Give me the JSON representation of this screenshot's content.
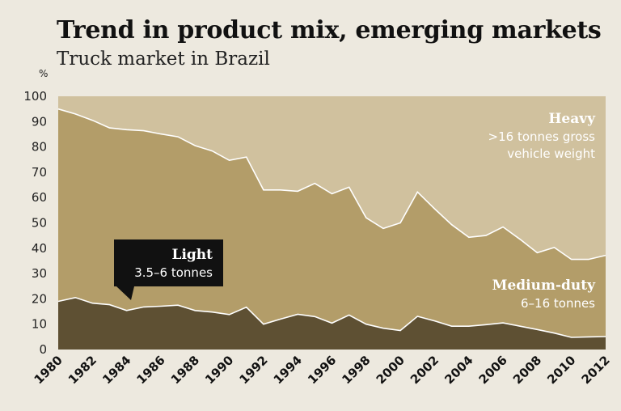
{
  "chart_data": {
    "type": "area",
    "stacked": true,
    "title": "Trend in product mix, emerging markets",
    "subtitle": "Truck market in Brazil",
    "ylabel": "%",
    "xlabel": "",
    "ylim": [
      0,
      100
    ],
    "yticks": [
      0,
      10,
      20,
      30,
      40,
      50,
      60,
      70,
      80,
      90,
      100
    ],
    "xlim": [
      1980,
      2012
    ],
    "xticks": [
      1980,
      1982,
      1984,
      1986,
      1988,
      1990,
      1992,
      1994,
      1996,
      1998,
      2000,
      2002,
      2004,
      2006,
      2008,
      2010,
      2012
    ],
    "x": [
      1980,
      1981,
      1982,
      1983,
      1984,
      1985,
      1986,
      1987,
      1988,
      1989,
      1990,
      1991,
      1992,
      1993,
      1994,
      1995,
      1996,
      1997,
      1998,
      1999,
      2000,
      2001,
      2002,
      2003,
      2004,
      2005,
      2006,
      2007,
      2008,
      2009,
      2010,
      2011,
      2012
    ],
    "series": [
      {
        "name": "Light",
        "color": "#5e5033",
        "values": [
          19,
          20.5,
          18.3,
          17.7,
          15.4,
          16.8,
          17.1,
          17.5,
          15.4,
          14.8,
          13.8,
          16.7,
          10,
          12,
          13.9,
          13,
          10.4,
          13.6,
          10,
          8.4,
          7.5,
          13.1,
          11.3,
          9.2,
          9.2,
          9.8,
          10.5,
          9.2,
          7.9,
          6.5,
          4.8,
          5,
          5.1
        ]
      },
      {
        "name": "Medium-duty",
        "color": "#b39d69",
        "values": [
          76,
          72.5,
          72.2,
          69.8,
          71.4,
          69.6,
          68,
          66.5,
          65.1,
          63.6,
          60.9,
          59.3,
          53,
          51,
          48.6,
          52.6,
          51.1,
          50.5,
          42,
          39.4,
          42.5,
          49.1,
          44.3,
          40.1,
          35.1,
          35.2,
          37.9,
          34.3,
          30.3,
          33.8,
          30.8,
          30.6,
          32.1
        ]
      },
      {
        "name": "Heavy",
        "color": "#d0c19e",
        "values": [
          5,
          7,
          9.5,
          12.5,
          13.2,
          13.6,
          14.9,
          16,
          19.5,
          21.6,
          25.3,
          24,
          37,
          37,
          37.5,
          34.4,
          38.5,
          35.9,
          48,
          52.2,
          50,
          37.8,
          44.4,
          50.7,
          55.7,
          55,
          51.6,
          56.5,
          61.8,
          59.7,
          64.4,
          64.4,
          62.8
        ]
      }
    ],
    "annotations": {
      "heavy": {
        "name": "Heavy",
        "detail_line1": ">16 tonnes gross",
        "detail_line2": "vehicle weight"
      },
      "medium": {
        "name": "Medium-duty",
        "detail": "6–16 tonnes"
      },
      "light": {
        "name": "Light",
        "detail": "3.5–6 tonnes"
      }
    }
  }
}
